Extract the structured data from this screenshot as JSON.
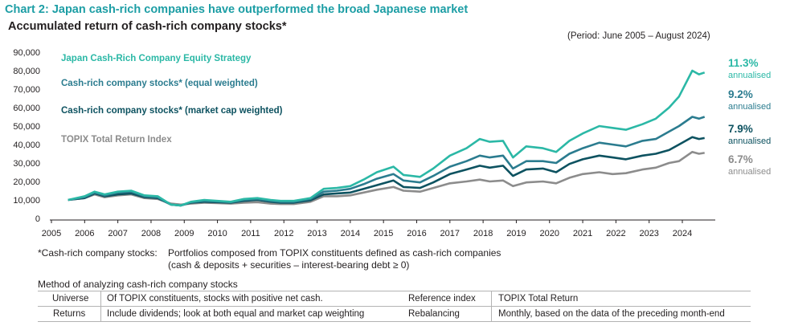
{
  "header": {
    "title": "Chart 2: Japan cash-rich companies have outperformed the broad Japanese market",
    "subtitle": "Accumulated return of cash-rich company stocks*",
    "period": "(Period: June 2005 – August 2024)"
  },
  "colors": {
    "strategy": "#2bb8a6",
    "equal": "#2b7c8f",
    "cap": "#0d5260",
    "topix": "#8c8c8c",
    "title": "#1d9ea5"
  },
  "chart_data": {
    "type": "line",
    "title": "Accumulated return of cash-rich company stocks*",
    "xlabel": "",
    "ylabel": "",
    "ylim": [
      0,
      90000
    ],
    "xlim": [
      2005.0,
      2024.75
    ],
    "yticks": [
      "0",
      "10,000",
      "20,000",
      "30,000",
      "40,000",
      "50,000",
      "60,000",
      "70,000",
      "80,000",
      "90,000"
    ],
    "xticks": [
      "2005",
      "2006",
      "2007",
      "2008",
      "2009",
      "2010",
      "2011",
      "2012",
      "2013",
      "2014",
      "2015",
      "2016",
      "2017",
      "2018",
      "2019",
      "2020",
      "2021",
      "2022",
      "2023",
      "2024"
    ],
    "x": [
      2005.5,
      2006.0,
      2006.3,
      2006.6,
      2007.0,
      2007.4,
      2007.8,
      2008.2,
      2008.6,
      2008.9,
      2009.2,
      2009.6,
      2010.0,
      2010.4,
      2010.8,
      2011.2,
      2011.6,
      2011.9,
      2012.3,
      2012.8,
      2013.2,
      2013.6,
      2014.0,
      2014.4,
      2014.8,
      2015.3,
      2015.6,
      2016.1,
      2016.5,
      2017.0,
      2017.5,
      2017.9,
      2018.2,
      2018.6,
      2018.9,
      2019.3,
      2019.8,
      2020.2,
      2020.6,
      2021.0,
      2021.5,
      2021.9,
      2022.3,
      2022.8,
      2023.2,
      2023.6,
      2023.9,
      2024.3,
      2024.5,
      2024.67
    ],
    "series": [
      {
        "name": "Japan Cash-Rich Company Equity Strategy",
        "annualised": "11.3%",
        "values": [
          10000,
          12000,
          14500,
          13000,
          14500,
          15000,
          12500,
          12000,
          7500,
          7000,
          9000,
          10000,
          9500,
          9000,
          10500,
          11000,
          10000,
          9500,
          9500,
          11000,
          16000,
          16500,
          17500,
          21000,
          25000,
          28000,
          23500,
          22500,
          27000,
          34000,
          38000,
          43000,
          41500,
          42000,
          33000,
          39000,
          38000,
          36000,
          42000,
          46000,
          50000,
          49000,
          48000,
          51000,
          54000,
          60000,
          66000,
          80000,
          78000,
          79000
        ]
      },
      {
        "name": "Cash-rich company stocks* (equal weighted)",
        "annualised": "9.2%",
        "values": [
          10000,
          11500,
          14000,
          12500,
          14000,
          14500,
          12000,
          11500,
          7500,
          7000,
          8800,
          9500,
          9200,
          8800,
          10000,
          10500,
          9500,
          9000,
          9000,
          10500,
          14500,
          15000,
          16000,
          18500,
          21500,
          24000,
          20500,
          19500,
          23000,
          28000,
          31000,
          34000,
          33000,
          34000,
          27000,
          31000,
          31000,
          30000,
          35000,
          38000,
          41000,
          40000,
          39000,
          42000,
          43000,
          47000,
          50000,
          55000,
          54000,
          55000
        ]
      },
      {
        "name": "Cash-rich company stocks* (market cap weighted)",
        "annualised": "7.9%",
        "values": [
          10000,
          11000,
          13500,
          12000,
          13000,
          13500,
          11500,
          11000,
          7500,
          7000,
          8500,
          9000,
          8800,
          8500,
          9500,
          10000,
          9000,
          8500,
          8500,
          9800,
          13000,
          13500,
          14000,
          16000,
          18000,
          20500,
          17000,
          16500,
          19500,
          24000,
          26500,
          28500,
          27500,
          28500,
          23000,
          26500,
          27000,
          25000,
          29500,
          32000,
          34000,
          33000,
          32000,
          34000,
          35000,
          37000,
          40000,
          44000,
          43000,
          43500
        ]
      },
      {
        "name": "TOPIX Total Return Index",
        "annualised": "6.7%",
        "values": [
          10000,
          11000,
          13000,
          11500,
          12500,
          13000,
          11000,
          10500,
          8000,
          7500,
          8000,
          8500,
          8300,
          8000,
          8500,
          8800,
          8000,
          7800,
          7800,
          9000,
          12000,
          12000,
          12500,
          14000,
          15500,
          17000,
          15000,
          14500,
          16500,
          19000,
          20000,
          21000,
          20000,
          20500,
          17500,
          19500,
          20000,
          19000,
          22000,
          24000,
          25000,
          24000,
          24500,
          26500,
          27500,
          30000,
          31000,
          36000,
          35000,
          35500
        ]
      }
    ]
  },
  "annotation_word": "annualised",
  "note": {
    "label": "*Cash-rich company stocks:",
    "line1": "Portfolios composed from TOPIX constituents defined as cash-rich companies",
    "line2": "(cash & deposits + securities – interest-bearing debt ≥ 0)"
  },
  "method": {
    "title": "Method of analyzing cash-rich company stocks",
    "rows": [
      {
        "label1": "Universe",
        "value1": "Of TOPIX constituents, stocks with positive net cash.",
        "label2": "Reference  index",
        "value2": "TOPIX Total Return"
      },
      {
        "label1": "Returns",
        "value1": "Include dividends; look at both equal and market cap weighting",
        "label2": "Rebalancing",
        "value2": "Monthly, based on the data of the preceding month-end"
      }
    ]
  }
}
